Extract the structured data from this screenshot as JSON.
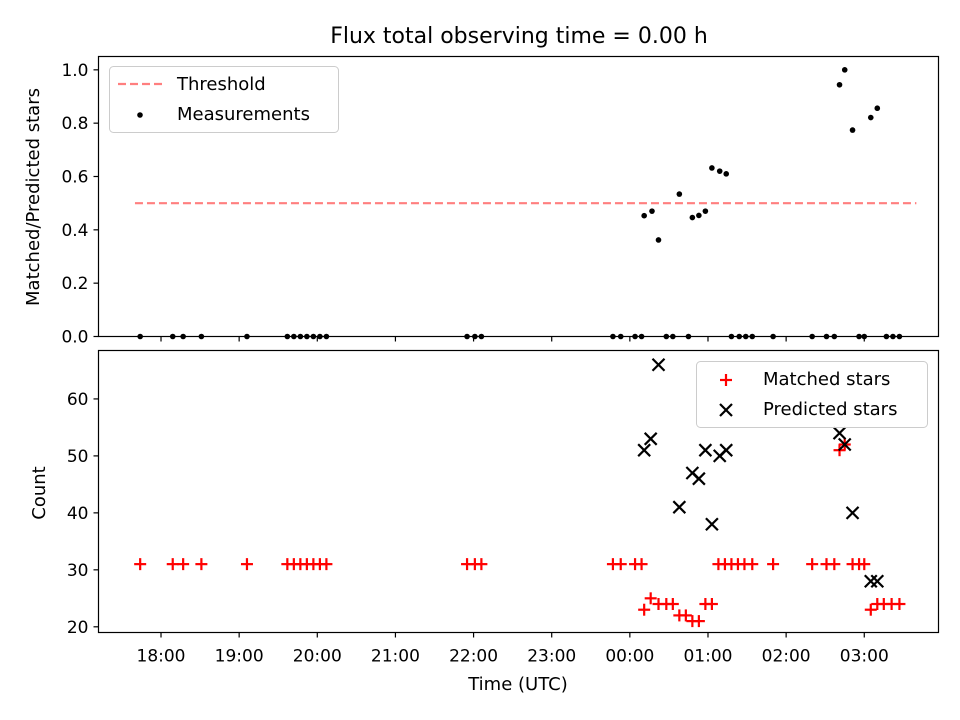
{
  "chart_data": [
    {
      "type": "scatter",
      "title": "Flux total observing time = 0.00 h",
      "ylabel": "Matched/Predicted stars",
      "xlabel": "",
      "xlim": [
        "17:12",
        "03:57"
      ],
      "ylim": [
        0,
        1.05
      ],
      "yticks": [
        0.0,
        0.2,
        0.4,
        0.6,
        0.8,
        1.0
      ],
      "ytick_labels": [
        "0.0",
        "0.2",
        "0.4",
        "0.6",
        "0.8",
        "1.0"
      ],
      "legend": {
        "position": "top-left",
        "entries": [
          "Threshold",
          "Measurements"
        ]
      },
      "threshold": {
        "name": "Threshold",
        "value": 0.5,
        "x_range": [
          "17:40",
          "03:40"
        ],
        "color": "#ff7f7f",
        "style": "dashed"
      },
      "series": [
        {
          "name": "Measurements",
          "color": "#000000",
          "marker": "dot",
          "points": [
            [
              "17:44",
              0
            ],
            [
              "18:09",
              0
            ],
            [
              "18:17",
              0
            ],
            [
              "18:31",
              0
            ],
            [
              "19:06",
              0
            ],
            [
              "19:37",
              0
            ],
            [
              "19:42",
              0
            ],
            [
              "19:47",
              0
            ],
            [
              "19:52",
              0
            ],
            [
              "19:57",
              0
            ],
            [
              "20:02",
              0
            ],
            [
              "20:07",
              0
            ],
            [
              "21:55",
              0
            ],
            [
              "22:01",
              0
            ],
            [
              "22:06",
              0
            ],
            [
              "23:47",
              0
            ],
            [
              "23:53",
              0
            ],
            [
              "00:04",
              0
            ],
            [
              "00:09",
              0
            ],
            [
              "00:11",
              0.453
            ],
            [
              "00:17",
              0.47
            ],
            [
              "00:22",
              0.362
            ],
            [
              "00:28",
              0
            ],
            [
              "00:33",
              0
            ],
            [
              "00:38",
              0.534
            ],
            [
              "00:45",
              0
            ],
            [
              "00:48",
              0.446
            ],
            [
              "00:53",
              0.454
            ],
            [
              "00:58",
              0.47
            ],
            [
              "01:03",
              0.632
            ],
            [
              "01:09",
              0.62
            ],
            [
              "01:14",
              0.61
            ],
            [
              "01:18",
              0
            ],
            [
              "01:24",
              0
            ],
            [
              "01:29",
              0
            ],
            [
              "01:34",
              0
            ],
            [
              "01:50",
              0
            ],
            [
              "02:20",
              0
            ],
            [
              "02:31",
              0
            ],
            [
              "02:37",
              0
            ],
            [
              "02:41",
              0.944
            ],
            [
              "02:45",
              1.0
            ],
            [
              "02:51",
              0.774
            ],
            [
              "02:56",
              0
            ],
            [
              "03:00",
              0
            ],
            [
              "03:05",
              0.821
            ],
            [
              "03:10",
              0.856
            ],
            [
              "03:17",
              0
            ],
            [
              "03:22",
              0
            ],
            [
              "03:27",
              0
            ]
          ]
        }
      ]
    },
    {
      "type": "scatter",
      "title": "",
      "ylabel": "Count",
      "xlabel": "Time (UTC)",
      "xlim": [
        "17:12",
        "03:57"
      ],
      "ylim": [
        19,
        68.5
      ],
      "yticks": [
        20,
        30,
        40,
        50,
        60
      ],
      "ytick_labels": [
        "20",
        "30",
        "40",
        "50",
        "60"
      ],
      "xticks": [
        "18:00",
        "19:00",
        "20:00",
        "21:00",
        "22:00",
        "23:00",
        "00:00",
        "01:00",
        "02:00",
        "03:00"
      ],
      "legend": {
        "position": "top-right",
        "entries": [
          "Matched stars",
          "Predicted stars"
        ]
      },
      "series": [
        {
          "name": "Matched stars",
          "color": "#ff0000",
          "marker": "plus",
          "points": [
            [
              "17:44",
              31
            ],
            [
              "18:09",
              31
            ],
            [
              "18:17",
              31
            ],
            [
              "18:31",
              31
            ],
            [
              "19:06",
              31
            ],
            [
              "19:37",
              31
            ],
            [
              "19:42",
              31
            ],
            [
              "19:47",
              31
            ],
            [
              "19:52",
              31
            ],
            [
              "19:57",
              31
            ],
            [
              "20:02",
              31
            ],
            [
              "20:07",
              31
            ],
            [
              "21:55",
              31
            ],
            [
              "22:01",
              31
            ],
            [
              "22:06",
              31
            ],
            [
              "23:47",
              31
            ],
            [
              "23:53",
              31
            ],
            [
              "00:04",
              31
            ],
            [
              "00:09",
              31
            ],
            [
              "00:11",
              23
            ],
            [
              "00:16",
              25
            ],
            [
              "00:22",
              24
            ],
            [
              "00:28",
              24
            ],
            [
              "00:33",
              24
            ],
            [
              "00:38",
              22
            ],
            [
              "00:43",
              22
            ],
            [
              "00:48",
              21
            ],
            [
              "00:53",
              21
            ],
            [
              "00:58",
              24
            ],
            [
              "01:03",
              24
            ],
            [
              "01:08",
              31
            ],
            [
              "01:13",
              31
            ],
            [
              "01:18",
              31
            ],
            [
              "01:23",
              31
            ],
            [
              "01:28",
              31
            ],
            [
              "01:34",
              31
            ],
            [
              "01:50",
              31
            ],
            [
              "02:20",
              31
            ],
            [
              "02:31",
              31
            ],
            [
              "02:37",
              31
            ],
            [
              "02:41",
              51
            ],
            [
              "02:45",
              52
            ],
            [
              "02:51",
              31
            ],
            [
              "02:56",
              31
            ],
            [
              "03:00",
              31
            ],
            [
              "03:05",
              23
            ],
            [
              "03:10",
              24
            ],
            [
              "03:15",
              24
            ],
            [
              "03:21",
              24
            ],
            [
              "03:27",
              24
            ]
          ]
        },
        {
          "name": "Predicted stars",
          "color": "#000000",
          "marker": "x",
          "points": [
            [
              "00:11",
              51
            ],
            [
              "00:16",
              53
            ],
            [
              "00:22",
              66
            ],
            [
              "00:38",
              41
            ],
            [
              "00:48",
              47
            ],
            [
              "00:53",
              46
            ],
            [
              "00:58",
              51
            ],
            [
              "01:03",
              38
            ],
            [
              "01:09",
              50
            ],
            [
              "01:14",
              51
            ],
            [
              "02:41",
              54
            ],
            [
              "02:45",
              52
            ],
            [
              "02:51",
              40
            ],
            [
              "03:05",
              28
            ],
            [
              "03:10",
              28
            ]
          ]
        }
      ]
    }
  ]
}
